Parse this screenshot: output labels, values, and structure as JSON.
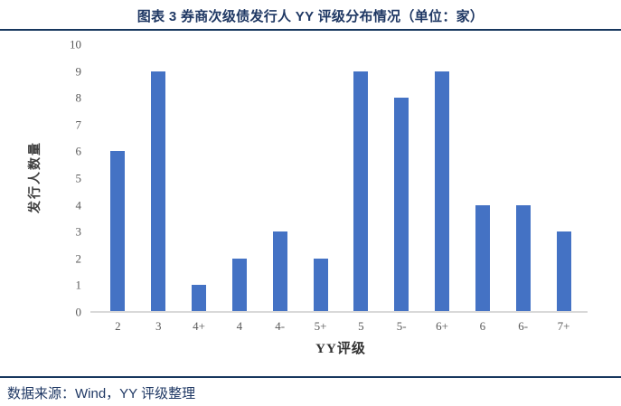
{
  "figure": {
    "title": "图表 3 券商次级债发行人 YY 评级分布情况（单位：家）",
    "source_note": "数据来源：Wind，YY 评级整理"
  },
  "chart_data": {
    "type": "bar",
    "title": "图表 3 券商次级债发行人 YY 评级分布情况（单位：家）",
    "categories": [
      "2",
      "3",
      "4+",
      "4",
      "4-",
      "5+",
      "5",
      "5-",
      "6+",
      "6",
      "6-",
      "7+"
    ],
    "values": [
      6,
      9,
      1,
      2,
      3,
      2,
      9,
      8,
      9,
      4,
      4,
      3
    ],
    "xlabel": "YY评级",
    "ylabel": "发行人数量",
    "ylim": [
      0,
      10
    ],
    "yticks": [
      0,
      1,
      2,
      3,
      4,
      5,
      6,
      7,
      8,
      9,
      10
    ],
    "grid": false,
    "legend_position": "none",
    "bar_color": "#4472C4",
    "axis_line_color": "#D9D9D9",
    "tick_label_color": "#595959"
  },
  "colors": {
    "title_text": "#1F3864",
    "rule_line": "#17375E",
    "source_text": "#1F3864"
  }
}
